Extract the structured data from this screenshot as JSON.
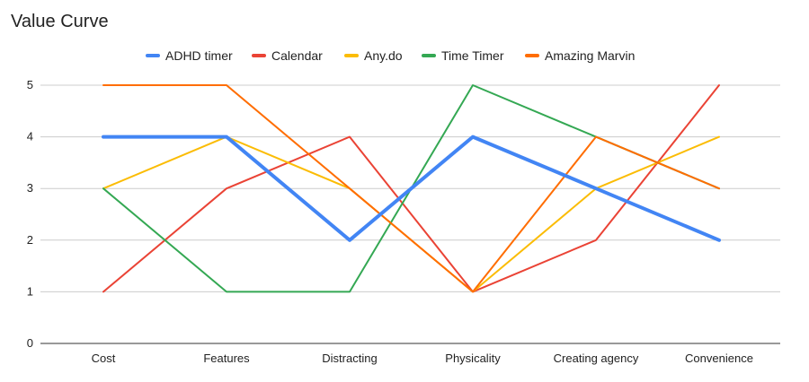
{
  "chart_data": {
    "type": "line",
    "title": "Value Curve",
    "xlabel": "",
    "ylabel": "",
    "categories": [
      "Cost",
      "Features",
      "Distracting",
      "Physicality",
      "Creating agency",
      "Convenience"
    ],
    "ylim": [
      0,
      5
    ],
    "yticks": [
      "0",
      "1",
      "2",
      "3",
      "4",
      "5"
    ],
    "grid": true,
    "legend_position": "top",
    "series": [
      {
        "name": "ADHD timer",
        "color": "#4285F4",
        "values": [
          4,
          4,
          2,
          4,
          3,
          2
        ]
      },
      {
        "name": "Calendar",
        "color": "#EA4335",
        "values": [
          1,
          3,
          4,
          1,
          2,
          5
        ]
      },
      {
        "name": "Any.do",
        "color": "#FBBC04",
        "values": [
          3,
          4,
          3,
          1,
          3,
          4
        ]
      },
      {
        "name": "Time Timer",
        "color": "#34A853",
        "values": [
          3,
          1,
          1,
          5,
          4,
          3
        ]
      },
      {
        "name": "Amazing Marvin",
        "color": "#FF6D01",
        "values": [
          5,
          5,
          3,
          1,
          4,
          3
        ]
      }
    ]
  }
}
